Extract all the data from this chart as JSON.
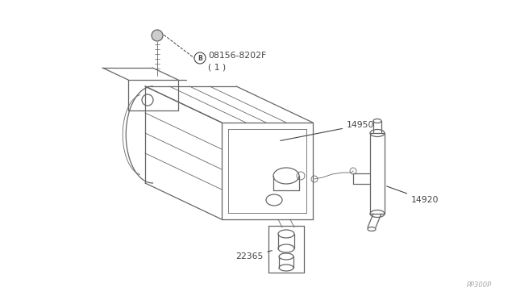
{
  "bg_color": "#ffffff",
  "line_color": "#666666",
  "label_color": "#444444",
  "fig_width": 6.4,
  "fig_height": 3.72,
  "dpi": 100,
  "watermark": "PP300P",
  "label_14950": "14950",
  "label_14920": "14920",
  "label_22365": "22365",
  "label_bolt": "08156-8202F",
  "label_bolt2": "( 1 )"
}
